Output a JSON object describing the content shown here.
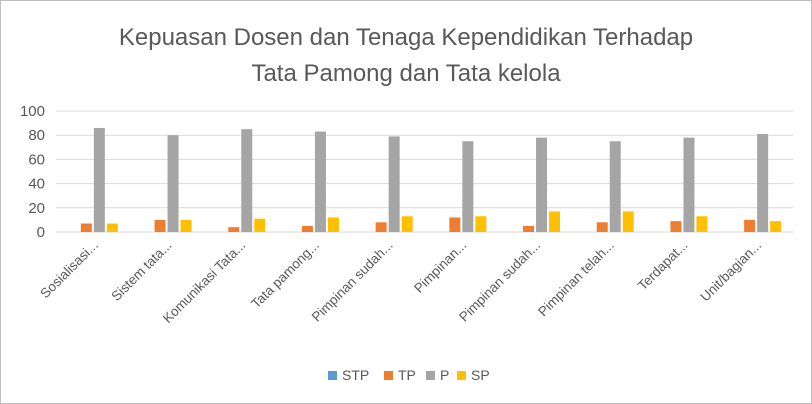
{
  "chart_data": {
    "type": "bar",
    "title": [
      "Kepuasan Dosen dan Tenaga Kependidikan Terhadap",
      "Tata Pamong dan Tata kelola"
    ],
    "xlabel": "",
    "ylabel": "",
    "ylim": [
      0,
      100
    ],
    "yticks": [
      0,
      20,
      40,
      60,
      80,
      100
    ],
    "grid": true,
    "legend_position": "bottom",
    "categories": [
      "Sosialisasi...",
      "Sistem tata...",
      "Komunikasi Tata...",
      "Tata pamong...",
      "Pimpinan sudah...",
      "Pimpinan...",
      "Pimpinan sudah...",
      "Pimpinan telah...",
      "Terdapat...",
      "Unit/bagian..."
    ],
    "series": [
      {
        "name": "STP",
        "color": "#5b9bd5",
        "values": [
          0,
          0,
          0,
          0,
          0,
          0,
          0,
          0,
          0,
          0
        ]
      },
      {
        "name": "TP",
        "color": "#ed7d31",
        "values": [
          7,
          10,
          4,
          5,
          8,
          12,
          5,
          8,
          9,
          10
        ]
      },
      {
        "name": "P",
        "color": "#a5a5a5",
        "values": [
          86,
          80,
          85,
          83,
          79,
          75,
          78,
          75,
          78,
          81
        ]
      },
      {
        "name": "SP",
        "color": "#ffc000",
        "values": [
          7,
          10,
          11,
          12,
          13,
          13,
          17,
          17,
          13,
          9
        ]
      }
    ]
  }
}
